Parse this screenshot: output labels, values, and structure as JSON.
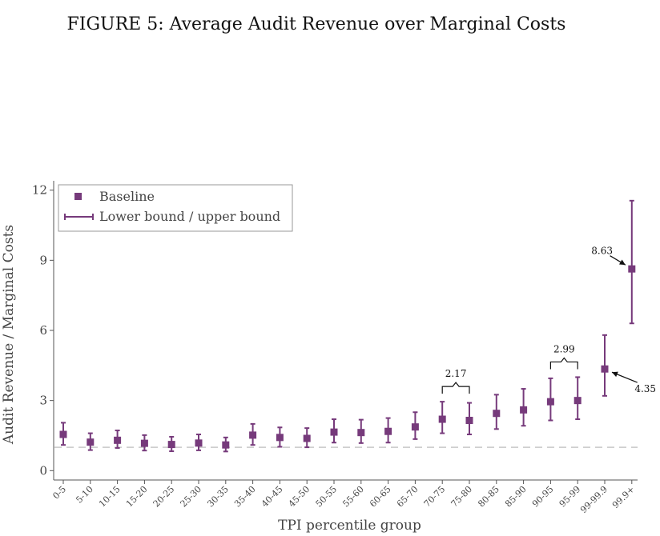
{
  "figure_title": "FIGURE 5: Average Audit Revenue over Marginal Costs",
  "colors": {
    "series": "#763a7b",
    "reference": "#c8c8c8",
    "axis": "#555555"
  },
  "chart_data": {
    "type": "scatter",
    "xlabel": "TPI percentile group",
    "ylabel": "Audit Revenue / Marginal Costs",
    "ylim": [
      -0.4,
      12.4
    ],
    "yticks": [
      0,
      3,
      6,
      9,
      12
    ],
    "reference_line": 1,
    "categories": [
      "0-5",
      "5-10",
      "10-15",
      "15-20",
      "20-25",
      "25-30",
      "30-35",
      "35-40",
      "40-45",
      "45-50",
      "50-55",
      "55-60",
      "60-65",
      "65-70",
      "70-75",
      "75-80",
      "80-85",
      "85-90",
      "90-95",
      "95-99",
      "99-99.9",
      "99.9+"
    ],
    "series": [
      {
        "name": "Baseline",
        "values": [
          1.55,
          1.22,
          1.3,
          1.17,
          1.12,
          1.18,
          1.1,
          1.52,
          1.42,
          1.38,
          1.65,
          1.63,
          1.68,
          1.87,
          2.2,
          2.15,
          2.45,
          2.6,
          2.95,
          3.0,
          4.35,
          8.63
        ]
      },
      {
        "name": "Lower bound / upper bound",
        "lower": [
          1.1,
          0.88,
          0.97,
          0.86,
          0.83,
          0.87,
          0.82,
          1.1,
          1.02,
          1.0,
          1.2,
          1.18,
          1.2,
          1.35,
          1.6,
          1.55,
          1.78,
          1.92,
          2.15,
          2.2,
          3.2,
          6.3
        ],
        "upper": [
          2.05,
          1.6,
          1.72,
          1.52,
          1.45,
          1.55,
          1.42,
          2.0,
          1.85,
          1.82,
          2.2,
          2.18,
          2.25,
          2.5,
          2.95,
          2.9,
          3.25,
          3.5,
          3.95,
          4.0,
          5.8,
          11.55
        ]
      }
    ],
    "legend": {
      "position": "top-left",
      "entries": [
        "Baseline",
        "Lower bound / upper bound"
      ]
    },
    "annotations": [
      {
        "text": "2.17",
        "type": "bracket",
        "from": "70-75",
        "to": "75-80",
        "y": 3.6
      },
      {
        "text": "2.99",
        "type": "bracket",
        "from": "90-95",
        "to": "95-99",
        "y": 4.65
      },
      {
        "text": "8.63",
        "type": "arrow",
        "target": "99.9+",
        "target_value": 8.63,
        "text_x_cat": 19.9,
        "text_y": 9.4
      },
      {
        "text": "4.35",
        "type": "arrow",
        "target": "99-99.9",
        "target_value": 4.35,
        "text_x_cat": 21.5,
        "text_y": 3.5
      }
    ]
  }
}
